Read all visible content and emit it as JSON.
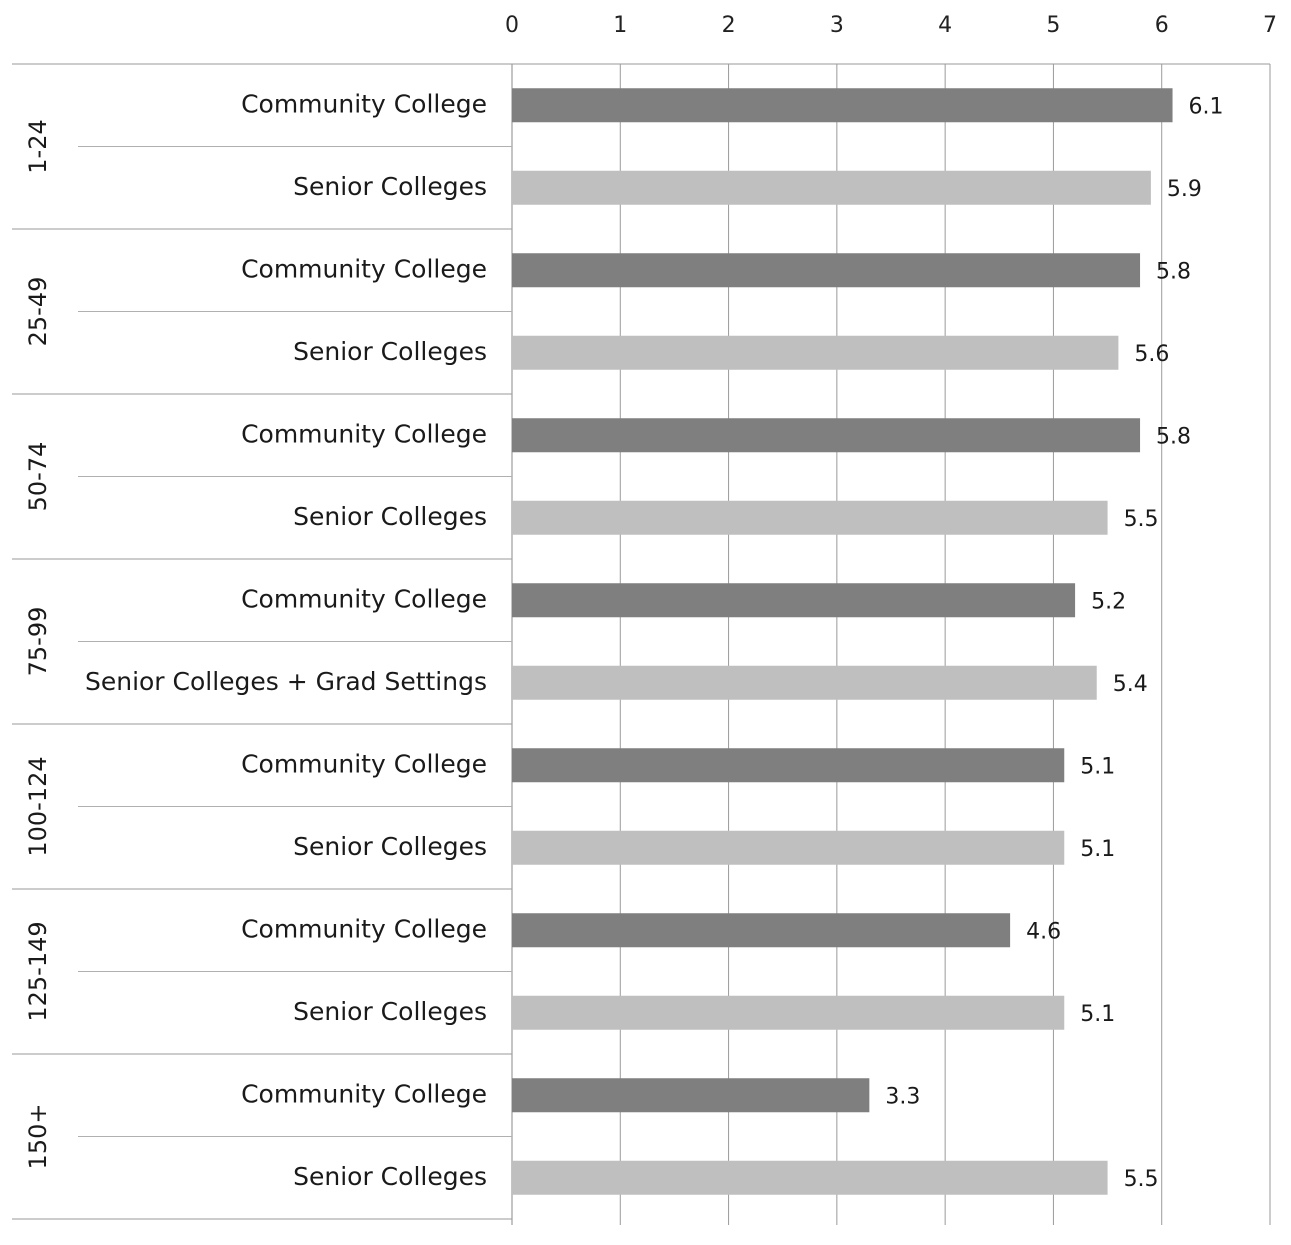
{
  "chart_data": {
    "type": "bar",
    "orientation": "horizontal",
    "title": "",
    "xlabel": "",
    "ylabel": "",
    "xlim": [
      0,
      7
    ],
    "x_ticks": [
      "0",
      "1",
      "2",
      "3",
      "4",
      "5",
      "6",
      "7"
    ],
    "x_axis_position": "top",
    "grid": true,
    "legend": "none",
    "colors": {
      "community": "#7f7f7f",
      "senior": "#bfbfbf"
    },
    "groups": [
      {
        "label": "1-24",
        "bars": [
          {
            "category": "Community College",
            "value": 6.1,
            "label": "6.1",
            "color_key": "community"
          },
          {
            "category": "Senior Colleges",
            "value": 5.9,
            "label": "5.9",
            "color_key": "senior"
          }
        ]
      },
      {
        "label": "25-49",
        "bars": [
          {
            "category": "Community College",
            "value": 5.8,
            "label": "5.8",
            "color_key": "community"
          },
          {
            "category": "Senior Colleges",
            "value": 5.6,
            "label": "5.6",
            "color_key": "senior"
          }
        ]
      },
      {
        "label": "50-74",
        "bars": [
          {
            "category": "Community College",
            "value": 5.8,
            "label": "5.8",
            "color_key": "community"
          },
          {
            "category": "Senior Colleges",
            "value": 5.5,
            "label": "5.5",
            "color_key": "senior"
          }
        ]
      },
      {
        "label": "75-99",
        "bars": [
          {
            "category": "Community College",
            "value": 5.2,
            "label": "5.2",
            "color_key": "community"
          },
          {
            "category": "Senior Colleges + Grad Settings",
            "value": 5.4,
            "label": "5.4",
            "color_key": "senior"
          }
        ]
      },
      {
        "label": "100-124",
        "bars": [
          {
            "category": "Community College",
            "value": 5.1,
            "label": "5.1",
            "color_key": "community"
          },
          {
            "category": "Senior Colleges",
            "value": 5.1,
            "label": "5.1",
            "color_key": "senior"
          }
        ]
      },
      {
        "label": "125-149",
        "bars": [
          {
            "category": "Community College",
            "value": 4.6,
            "label": "4.6",
            "color_key": "community"
          },
          {
            "category": "Senior Colleges",
            "value": 5.1,
            "label": "5.1",
            "color_key": "senior"
          }
        ]
      },
      {
        "label": "150+",
        "bars": [
          {
            "category": "Community College",
            "value": 3.3,
            "label": "3.3",
            "color_key": "community"
          },
          {
            "category": "Senior Colleges",
            "value": 5.5,
            "label": "5.5",
            "color_key": "senior"
          }
        ]
      }
    ]
  }
}
